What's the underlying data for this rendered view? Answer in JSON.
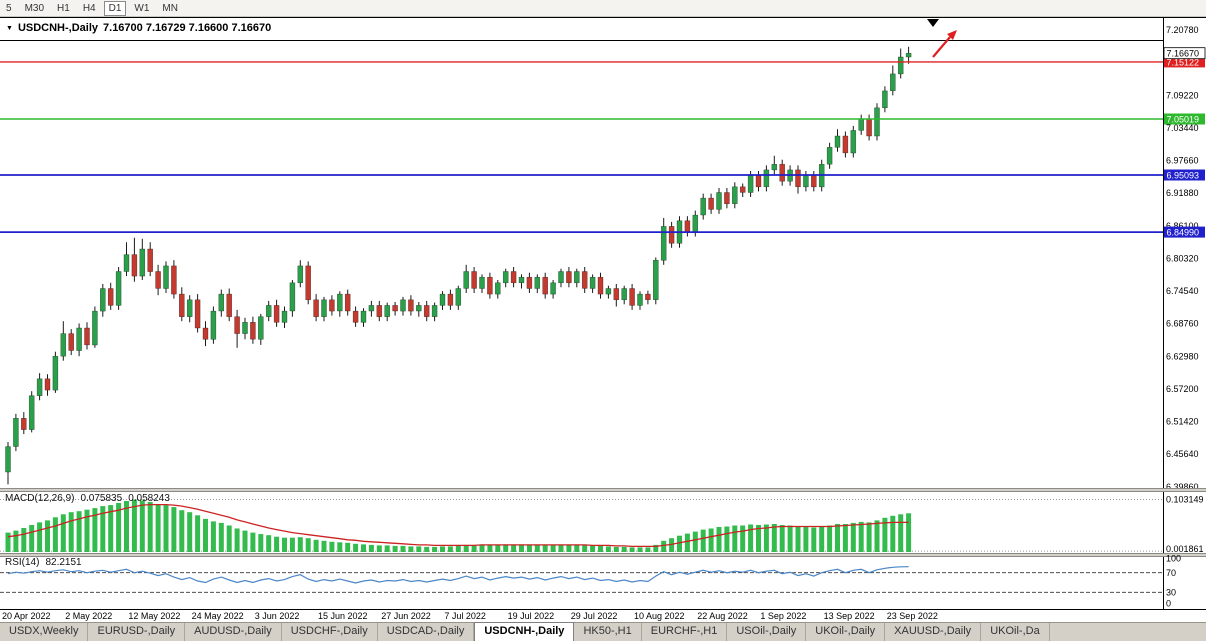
{
  "toolbar": {
    "periods": [
      {
        "label": "5",
        "active": false
      },
      {
        "label": "M30",
        "active": false
      },
      {
        "label": "H1",
        "active": false
      },
      {
        "label": "H4",
        "active": false
      },
      {
        "label": "D1",
        "active": true
      },
      {
        "label": "W1",
        "active": false
      },
      {
        "label": "MN",
        "active": false
      }
    ]
  },
  "header": {
    "symbol": "USDCNH-,Daily",
    "ohlc": "7.16700 7.16729 7.16600 7.16670"
  },
  "price_axis": {
    "scale": [
      {
        "v": 7.2078,
        "label": "7.20780"
      },
      {
        "v": 7.0922,
        "label": "7.09220"
      },
      {
        "v": 7.0344,
        "label": "7.03440"
      },
      {
        "v": 6.9766,
        "label": "6.97660"
      },
      {
        "v": 6.9188,
        "label": "6.91880"
      },
      {
        "v": 6.861,
        "label": "6.86100"
      },
      {
        "v": 6.8032,
        "label": "6.80320"
      },
      {
        "v": 6.7454,
        "label": "6.74540"
      },
      {
        "v": 6.6876,
        "label": "6.68760"
      },
      {
        "v": 6.6298,
        "label": "6.62980"
      },
      {
        "v": 6.572,
        "label": "6.57200"
      },
      {
        "v": 6.5142,
        "label": "6.51420"
      },
      {
        "v": 6.4564,
        "label": "6.45640"
      },
      {
        "v": 6.3986,
        "label": "6.39860"
      }
    ],
    "current": {
      "value": 7.1667,
      "label": "7.16670",
      "bg": "#ffffff",
      "fg": "#000000"
    },
    "levels": [
      {
        "value": 7.15122,
        "label": "7.15122",
        "color": "#e02020"
      },
      {
        "value": 7.05019,
        "label": "7.05019",
        "color": "#2db82d"
      },
      {
        "value": 6.95093,
        "label": "6.95093",
        "color": "#2020cc"
      },
      {
        "value": 6.8499,
        "label": "6.84990",
        "color": "#2020cc"
      }
    ]
  },
  "macd": {
    "label": "MACD(12,26,9)",
    "main": "0.075835",
    "signal": "0.058243",
    "axis_top": "0.103149",
    "axis_bottom": "0.001861"
  },
  "rsi": {
    "label": "RSI(14)",
    "value": "82.2151",
    "axis": [
      "100",
      "70",
      "30",
      "0"
    ]
  },
  "tabs": {
    "items": [
      {
        "label": "USDX,Weekly",
        "active": false
      },
      {
        "label": "EURUSD-,Daily",
        "active": false
      },
      {
        "label": "AUDUSD-,Daily",
        "active": false
      },
      {
        "label": "USDCHF-,Daily",
        "active": false
      },
      {
        "label": "USDCAD-,Daily",
        "active": false
      },
      {
        "label": "USDCNH-,Daily",
        "active": true
      },
      {
        "label": "HK50-,H1",
        "active": false
      },
      {
        "label": "EURCHF-,H1",
        "active": false
      },
      {
        "label": "USOil-,Daily",
        "active": false
      },
      {
        "label": "UKOil-,Daily",
        "active": false
      },
      {
        "label": "XAUUSD-,Daily",
        "active": false
      },
      {
        "label": "UKOil-,Da",
        "active": false
      }
    ],
    "scroll_icon": "◄"
  },
  "chart_data": {
    "type": "candlestick",
    "symbol": "USDCNH-",
    "timeframe": "Daily",
    "title": "USDCNH-,Daily",
    "ohlc_current": {
      "open": 7.167,
      "high": 7.16729,
      "low": 7.166,
      "close": 7.1667
    },
    "y_min": 6.3986,
    "y_max": 7.2078,
    "colors": {
      "up": "#2ba04a",
      "down": "#c43a2e",
      "wick": "#1a1a1a",
      "macd_hist": "#33bb4e",
      "macd_signal": "#cc2222",
      "rsi_line": "#4a86c8"
    },
    "hlines": [
      {
        "price": 7.15122,
        "color": "#e02020",
        "width": 1.4
      },
      {
        "price": 7.05019,
        "color": "#2db82d",
        "width": 1.6
      },
      {
        "price": 6.95093,
        "color": "#2020cc",
        "width": 1.8
      },
      {
        "price": 6.8499,
        "color": "#2020cc",
        "width": 1.8
      }
    ],
    "x_ticks": [
      {
        "i": 0,
        "label": "20 Apr 2022"
      },
      {
        "i": 8,
        "label": "2 May 2022"
      },
      {
        "i": 16,
        "label": "12 May 2022"
      },
      {
        "i": 24,
        "label": "24 May 2022"
      },
      {
        "i": 32,
        "label": "3 Jun 2022"
      },
      {
        "i": 40,
        "label": "15 Jun 2022"
      },
      {
        "i": 48,
        "label": "27 Jun 2022"
      },
      {
        "i": 56,
        "label": "7 Jul 2022"
      },
      {
        "i": 64,
        "label": "19 Jul 2022"
      },
      {
        "i": 72,
        "label": "29 Jul 2022"
      },
      {
        "i": 80,
        "label": "10 Aug 2022"
      },
      {
        "i": 88,
        "label": "22 Aug 2022"
      },
      {
        "i": 96,
        "label": "1 Sep 2022"
      },
      {
        "i": 104,
        "label": "13 Sep 2022"
      },
      {
        "i": 112,
        "label": "23 Sep 2022"
      }
    ],
    "candles": [
      [
        6.425,
        6.478,
        6.403,
        6.47
      ],
      [
        6.47,
        6.528,
        6.462,
        6.52
      ],
      [
        6.52,
        6.531,
        6.492,
        6.5
      ],
      [
        6.5,
        6.568,
        6.495,
        6.56
      ],
      [
        6.56,
        6.6,
        6.552,
        6.59
      ],
      [
        6.59,
        6.598,
        6.56,
        6.57
      ],
      [
        6.57,
        6.638,
        6.565,
        6.63
      ],
      [
        6.63,
        6.692,
        6.622,
        6.67
      ],
      [
        6.67,
        6.678,
        6.632,
        6.64
      ],
      [
        6.64,
        6.688,
        6.63,
        6.68
      ],
      [
        6.68,
        6.69,
        6.642,
        6.65
      ],
      [
        6.65,
        6.718,
        6.645,
        6.71
      ],
      [
        6.71,
        6.758,
        6.7,
        6.75
      ],
      [
        6.75,
        6.76,
        6.712,
        6.72
      ],
      [
        6.72,
        6.788,
        6.712,
        6.78
      ],
      [
        6.78,
        6.832,
        6.772,
        6.81
      ],
      [
        6.81,
        6.84,
        6.762,
        6.772
      ],
      [
        6.772,
        6.838,
        6.765,
        6.82
      ],
      [
        6.82,
        6.832,
        6.772,
        6.78
      ],
      [
        6.78,
        6.792,
        6.738,
        6.75
      ],
      [
        6.75,
        6.798,
        6.742,
        6.79
      ],
      [
        6.79,
        6.8,
        6.732,
        6.74
      ],
      [
        6.74,
        6.752,
        6.692,
        6.7
      ],
      [
        6.7,
        6.738,
        6.69,
        6.73
      ],
      [
        6.73,
        6.74,
        6.672,
        6.68
      ],
      [
        6.68,
        6.692,
        6.648,
        6.66
      ],
      [
        6.66,
        6.718,
        6.652,
        6.71
      ],
      [
        6.71,
        6.748,
        6.7,
        6.74
      ],
      [
        6.74,
        6.75,
        6.692,
        6.7
      ],
      [
        6.7,
        6.712,
        6.645,
        6.67
      ],
      [
        6.67,
        6.698,
        6.66,
        6.69
      ],
      [
        6.69,
        6.7,
        6.652,
        6.66
      ],
      [
        6.66,
        6.705,
        6.65,
        6.7
      ],
      [
        6.7,
        6.728,
        6.692,
        6.72
      ],
      [
        6.72,
        6.73,
        6.682,
        6.69
      ],
      [
        6.69,
        6.718,
        6.68,
        6.71
      ],
      [
        6.71,
        6.765,
        6.7,
        6.76
      ],
      [
        6.76,
        6.8,
        6.752,
        6.79
      ],
      [
        6.79,
        6.798,
        6.722,
        6.73
      ],
      [
        6.73,
        6.74,
        6.692,
        6.7
      ],
      [
        6.7,
        6.735,
        6.692,
        6.73
      ],
      [
        6.73,
        6.738,
        6.702,
        6.71
      ],
      [
        6.71,
        6.745,
        6.7,
        6.74
      ],
      [
        6.74,
        6.748,
        6.702,
        6.71
      ],
      [
        6.71,
        6.718,
        6.682,
        6.69
      ],
      [
        6.69,
        6.715,
        6.682,
        6.71
      ],
      [
        6.71,
        6.728,
        6.7,
        6.72
      ],
      [
        6.72,
        6.728,
        6.692,
        6.7
      ],
      [
        6.7,
        6.725,
        6.692,
        6.72
      ],
      [
        6.72,
        6.726,
        6.702,
        6.71
      ],
      [
        6.71,
        6.735,
        6.702,
        6.73
      ],
      [
        6.73,
        6.738,
        6.702,
        6.71
      ],
      [
        6.71,
        6.726,
        6.7,
        6.72
      ],
      [
        6.72,
        6.728,
        6.692,
        6.7
      ],
      [
        6.7,
        6.725,
        6.692,
        6.72
      ],
      [
        6.72,
        6.745,
        6.712,
        6.74
      ],
      [
        6.74,
        6.748,
        6.712,
        6.72
      ],
      [
        6.72,
        6.755,
        6.712,
        6.75
      ],
      [
        6.75,
        6.792,
        6.742,
        6.78
      ],
      [
        6.78,
        6.788,
        6.742,
        6.75
      ],
      [
        6.75,
        6.775,
        6.742,
        6.77
      ],
      [
        6.77,
        6.778,
        6.732,
        6.74
      ],
      [
        6.74,
        6.765,
        6.732,
        6.76
      ],
      [
        6.76,
        6.785,
        6.752,
        6.78
      ],
      [
        6.78,
        6.788,
        6.752,
        6.76
      ],
      [
        6.76,
        6.775,
        6.75,
        6.77
      ],
      [
        6.77,
        6.778,
        6.742,
        6.75
      ],
      [
        6.75,
        6.775,
        6.742,
        6.77
      ],
      [
        6.77,
        6.778,
        6.732,
        6.74
      ],
      [
        6.74,
        6.765,
        6.732,
        6.76
      ],
      [
        6.76,
        6.785,
        6.752,
        6.78
      ],
      [
        6.78,
        6.788,
        6.752,
        6.76
      ],
      [
        6.76,
        6.785,
        6.752,
        6.78
      ],
      [
        6.78,
        6.788,
        6.742,
        6.75
      ],
      [
        6.75,
        6.775,
        6.742,
        6.77
      ],
      [
        6.77,
        6.778,
        6.732,
        6.74
      ],
      [
        6.74,
        6.755,
        6.732,
        6.75
      ],
      [
        6.75,
        6.758,
        6.718,
        6.73
      ],
      [
        6.73,
        6.755,
        6.722,
        6.75
      ],
      [
        6.75,
        6.758,
        6.712,
        6.72
      ],
      [
        6.72,
        6.745,
        6.712,
        6.74
      ],
      [
        6.74,
        6.746,
        6.722,
        6.73
      ],
      [
        6.73,
        6.805,
        6.722,
        6.8
      ],
      [
        6.8,
        6.875,
        6.792,
        6.86
      ],
      [
        6.86,
        6.868,
        6.822,
        6.83
      ],
      [
        6.83,
        6.878,
        6.822,
        6.87
      ],
      [
        6.87,
        6.878,
        6.842,
        6.85
      ],
      [
        6.85,
        6.888,
        6.842,
        6.88
      ],
      [
        6.88,
        6.918,
        6.872,
        6.91
      ],
      [
        6.91,
        6.918,
        6.882,
        6.89
      ],
      [
        6.89,
        6.928,
        6.882,
        6.92
      ],
      [
        6.92,
        6.928,
        6.892,
        6.9
      ],
      [
        6.9,
        6.938,
        6.892,
        6.93
      ],
      [
        6.93,
        6.936,
        6.912,
        6.92
      ],
      [
        6.92,
        6.958,
        6.912,
        6.95
      ],
      [
        6.95,
        6.958,
        6.922,
        6.93
      ],
      [
        6.93,
        6.968,
        6.922,
        6.96
      ],
      [
        6.96,
        6.985,
        6.952,
        6.97
      ],
      [
        6.97,
        6.978,
        6.932,
        6.94
      ],
      [
        6.94,
        6.968,
        6.932,
        6.96
      ],
      [
        6.96,
        6.968,
        6.918,
        6.93
      ],
      [
        6.93,
        6.958,
        6.922,
        6.95
      ],
      [
        6.95,
        6.958,
        6.922,
        6.93
      ],
      [
        6.93,
        6.978,
        6.922,
        6.97
      ],
      [
        6.97,
        7.008,
        6.962,
        7.0
      ],
      [
        7.0,
        7.032,
        6.992,
        7.02
      ],
      [
        7.02,
        7.028,
        6.982,
        6.99
      ],
      [
        6.99,
        7.038,
        6.982,
        7.03
      ],
      [
        7.03,
        7.058,
        7.022,
        7.05
      ],
      [
        7.05,
        7.058,
        7.012,
        7.02
      ],
      [
        7.02,
        7.078,
        7.012,
        7.07
      ],
      [
        7.07,
        7.108,
        7.062,
        7.1
      ],
      [
        7.1,
        7.145,
        7.092,
        7.13
      ],
      [
        7.13,
        7.175,
        7.122,
        7.16
      ],
      [
        7.16,
        7.178,
        7.148,
        7.1667
      ]
    ],
    "macd": {
      "range": [
        0,
        0.1075
      ],
      "hist": [
        0.038,
        0.042,
        0.047,
        0.053,
        0.058,
        0.062,
        0.068,
        0.074,
        0.078,
        0.08,
        0.083,
        0.086,
        0.09,
        0.092,
        0.096,
        0.1,
        0.103,
        0.101,
        0.098,
        0.094,
        0.092,
        0.088,
        0.082,
        0.078,
        0.072,
        0.065,
        0.06,
        0.057,
        0.052,
        0.046,
        0.042,
        0.038,
        0.035,
        0.033,
        0.03,
        0.028,
        0.028,
        0.029,
        0.027,
        0.024,
        0.022,
        0.02,
        0.019,
        0.018,
        0.016,
        0.015,
        0.014,
        0.013,
        0.013,
        0.012,
        0.012,
        0.011,
        0.011,
        0.01,
        0.01,
        0.011,
        0.011,
        0.012,
        0.014,
        0.014,
        0.015,
        0.014,
        0.014,
        0.015,
        0.015,
        0.015,
        0.014,
        0.014,
        0.013,
        0.013,
        0.014,
        0.014,
        0.014,
        0.013,
        0.013,
        0.012,
        0.011,
        0.01,
        0.01,
        0.009,
        0.009,
        0.009,
        0.014,
        0.022,
        0.027,
        0.032,
        0.036,
        0.04,
        0.044,
        0.046,
        0.049,
        0.05,
        0.052,
        0.052,
        0.054,
        0.053,
        0.054,
        0.055,
        0.053,
        0.052,
        0.05,
        0.049,
        0.048,
        0.049,
        0.052,
        0.055,
        0.055,
        0.057,
        0.059,
        0.058,
        0.062,
        0.067,
        0.071,
        0.074,
        0.0758
      ],
      "signal": [
        0.03,
        0.032,
        0.035,
        0.039,
        0.043,
        0.047,
        0.051,
        0.056,
        0.061,
        0.065,
        0.069,
        0.072,
        0.076,
        0.079,
        0.082,
        0.086,
        0.089,
        0.092,
        0.093,
        0.093,
        0.093,
        0.092,
        0.09,
        0.087,
        0.084,
        0.08,
        0.076,
        0.072,
        0.068,
        0.063,
        0.059,
        0.055,
        0.051,
        0.047,
        0.044,
        0.041,
        0.038,
        0.036,
        0.034,
        0.032,
        0.03,
        0.028,
        0.026,
        0.024,
        0.023,
        0.021,
        0.02,
        0.019,
        0.018,
        0.017,
        0.016,
        0.015,
        0.014,
        0.014,
        0.013,
        0.013,
        0.013,
        0.013,
        0.013,
        0.013,
        0.014,
        0.014,
        0.014,
        0.014,
        0.014,
        0.014,
        0.014,
        0.014,
        0.014,
        0.014,
        0.014,
        0.014,
        0.014,
        0.014,
        0.013,
        0.013,
        0.013,
        0.012,
        0.012,
        0.011,
        0.011,
        0.011,
        0.011,
        0.013,
        0.015,
        0.018,
        0.021,
        0.024,
        0.027,
        0.03,
        0.033,
        0.036,
        0.039,
        0.041,
        0.044,
        0.046,
        0.047,
        0.049,
        0.05,
        0.05,
        0.05,
        0.05,
        0.05,
        0.05,
        0.05,
        0.051,
        0.052,
        0.053,
        0.054,
        0.055,
        0.056,
        0.057,
        0.058,
        0.058,
        0.0582
      ]
    },
    "rsi": {
      "range": [
        0,
        100
      ],
      "levels": [
        70,
        30
      ],
      "values": [
        68,
        71,
        69,
        72,
        74,
        71,
        74,
        76,
        72,
        74,
        70,
        73,
        75,
        71,
        74,
        77,
        70,
        73,
        69,
        64,
        68,
        61,
        56,
        60,
        53,
        50,
        57,
        61,
        55,
        50,
        54,
        50,
        55,
        58,
        53,
        56,
        62,
        66,
        57,
        52,
        56,
        53,
        57,
        53,
        49,
        53,
        55,
        51,
        54,
        53,
        56,
        52,
        54,
        51,
        54,
        57,
        54,
        58,
        63,
        58,
        61,
        55,
        59,
        62,
        59,
        61,
        57,
        60,
        55,
        59,
        62,
        58,
        61,
        56,
        59,
        54,
        56,
        52,
        55,
        51,
        54,
        52,
        63,
        72,
        66,
        71,
        67,
        71,
        75,
        71,
        74,
        70,
        73,
        71,
        75,
        70,
        73,
        75,
        68,
        71,
        64,
        68,
        63,
        70,
        74,
        77,
        70,
        75,
        77,
        70,
        76,
        79,
        81,
        82,
        82.2
      ]
    }
  }
}
